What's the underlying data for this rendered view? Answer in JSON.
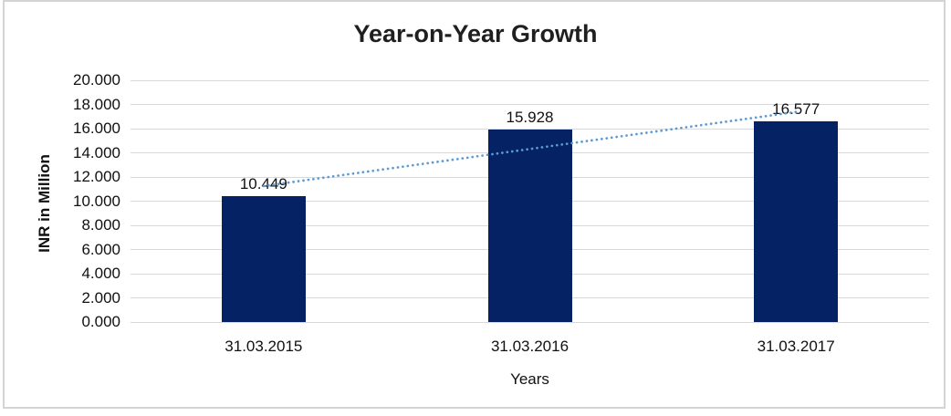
{
  "chart_data": {
    "type": "bar",
    "title": "Year-on-Year Growth",
    "xlabel": "Years",
    "ylabel": "INR in Million",
    "categories": [
      "31.03.2015",
      "31.03.2016",
      "31.03.2017"
    ],
    "values": [
      10.449,
      15.928,
      16.577
    ],
    "data_labels": [
      "10.449",
      "15.928",
      "16.577"
    ],
    "ylim": [
      0,
      20
    ],
    "ytick_step": 2,
    "yticks": [
      "0.000",
      "2.000",
      "4.000",
      "6.000",
      "8.000",
      "10.000",
      "12.000",
      "14.000",
      "16.000",
      "18.000",
      "20.000"
    ],
    "grid": true,
    "legend": "none",
    "bar_color": "#052265",
    "gridline_color": "#d9d9d9",
    "trendline": {
      "type": "linear",
      "style": "dotted",
      "color": "#5b9bd5",
      "start_value": 11.25,
      "end_value": 17.38
    }
  }
}
